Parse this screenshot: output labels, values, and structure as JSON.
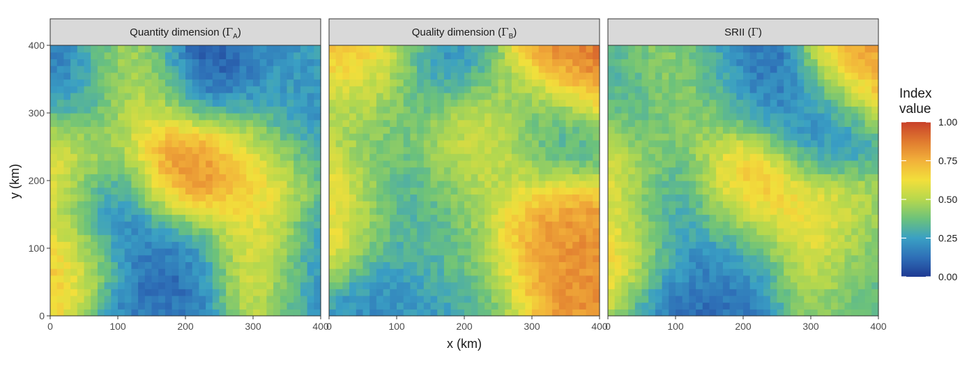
{
  "chart_data": {
    "type": "heatmap",
    "x_axis_label": "x (km)",
    "y_axis_label": "y (km)",
    "x_range": [
      0,
      400
    ],
    "y_range": [
      0,
      400
    ],
    "x_ticks": [
      0,
      100,
      200,
      300,
      400
    ],
    "y_ticks": [
      0,
      100,
      200,
      300,
      400
    ],
    "grid_cells": 40,
    "color_scale": {
      "title_line1": "Index",
      "title_line2": "value",
      "range": [
        0,
        1
      ],
      "ticks": [
        "0.00",
        "0.25",
        "0.50",
        "0.75",
        "1.00"
      ],
      "stops": [
        "#1f3a93",
        "#2e6fb7",
        "#3aa0c4",
        "#6cc27b",
        "#b6d84d",
        "#f2df3b",
        "#f2b13a",
        "#e07a2f",
        "#c8412a"
      ]
    },
    "panels": [
      {
        "strip_prefix": "Quantity dimension (",
        "strip_symbol": "Γ",
        "strip_sub": "A",
        "strip_suffix": ")",
        "hotspots": [
          {
            "x": 200,
            "y": 205,
            "value": 0.97
          },
          {
            "x": 90,
            "y": 160,
            "value": 0.02
          },
          {
            "x": 230,
            "y": 365,
            "value": 0.02
          },
          {
            "x": 200,
            "y": 85,
            "value": 0.05
          },
          {
            "x": 40,
            "y": 330,
            "value": 0.1
          },
          {
            "x": 385,
            "y": 75,
            "value": 0.08
          },
          {
            "x": 390,
            "y": 290,
            "value": 0.2
          },
          {
            "x": 125,
            "y": 335,
            "value": 0.65
          },
          {
            "x": 20,
            "y": 225,
            "value": 0.72
          },
          {
            "x": 20,
            "y": 90,
            "value": 0.72
          },
          {
            "x": 310,
            "y": 85,
            "value": 0.78
          },
          {
            "x": 300,
            "y": 225,
            "value": 0.62
          },
          {
            "x": 345,
            "y": 360,
            "value": 0.25
          },
          {
            "x": 150,
            "y": 15,
            "value": 0.15
          }
        ]
      },
      {
        "strip_prefix": "Quality dimension (",
        "strip_symbol": "Γ",
        "strip_sub": "B",
        "strip_suffix": ")",
        "hotspots": [
          {
            "x": 360,
            "y": 380,
            "value": 0.9
          },
          {
            "x": 40,
            "y": 370,
            "value": 0.8
          },
          {
            "x": 230,
            "y": 265,
            "value": 0.76
          },
          {
            "x": 320,
            "y": 120,
            "value": 0.82
          },
          {
            "x": 170,
            "y": 360,
            "value": 0.18
          },
          {
            "x": 95,
            "y": 175,
            "value": 0.22
          },
          {
            "x": 310,
            "y": 280,
            "value": 0.2
          },
          {
            "x": 190,
            "y": 85,
            "value": 0.38
          },
          {
            "x": 200,
            "y": 215,
            "value": 0.4
          },
          {
            "x": 50,
            "y": 310,
            "value": 0.35
          },
          {
            "x": 120,
            "y": 15,
            "value": 0.2
          },
          {
            "x": 20,
            "y": 175,
            "value": 0.72
          }
        ]
      },
      {
        "strip_prefix": "SRII (",
        "strip_symbol": "Γ",
        "strip_sub": "",
        "strip_suffix": ")",
        "hotspots": [
          {
            "x": 200,
            "y": 190,
            "value": 0.8
          },
          {
            "x": 90,
            "y": 170,
            "value": 0.1
          },
          {
            "x": 200,
            "y": 360,
            "value": 0.08
          },
          {
            "x": 190,
            "y": 85,
            "value": 0.18
          },
          {
            "x": 40,
            "y": 310,
            "value": 0.28
          },
          {
            "x": 310,
            "y": 280,
            "value": 0.18
          },
          {
            "x": 390,
            "y": 380,
            "value": 0.8
          },
          {
            "x": 320,
            "y": 120,
            "value": 0.72
          },
          {
            "x": 20,
            "y": 200,
            "value": 0.7
          },
          {
            "x": 10,
            "y": 90,
            "value": 0.7
          },
          {
            "x": 380,
            "y": 85,
            "value": 0.28
          },
          {
            "x": 110,
            "y": 15,
            "value": 0.1
          },
          {
            "x": 125,
            "y": 340,
            "value": 0.55
          }
        ]
      }
    ]
  }
}
